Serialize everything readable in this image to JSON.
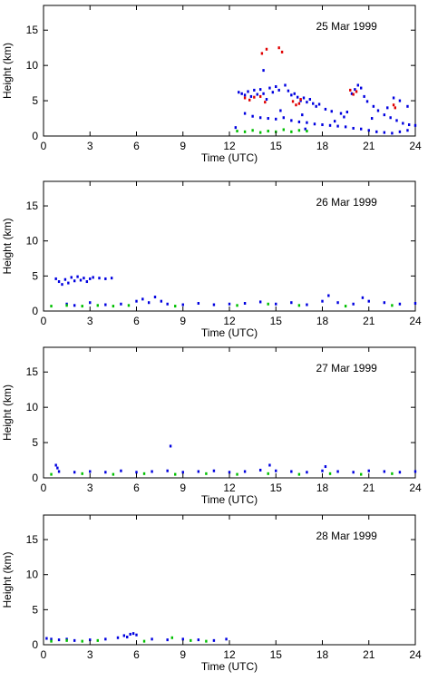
{
  "chart_data": [
    {
      "type": "scatter",
      "title": "25 Mar 1999",
      "xlabel": "Time (UTC)",
      "ylabel": "Height (km)",
      "xlim": [
        0,
        24
      ],
      "ylim": [
        0,
        18.5
      ],
      "xticks": [
        0,
        3,
        6,
        9,
        12,
        15,
        18,
        21,
        24
      ],
      "yticks": [
        0,
        5,
        10,
        15
      ],
      "grid": false,
      "colors": {
        "blue": "#0000e0",
        "red": "#e00000",
        "green": "#00c000"
      },
      "series": [
        {
          "color": "blue",
          "points": [
            [
              12.6,
              6.2
            ],
            [
              12.8,
              6.0
            ],
            [
              13.0,
              5.8
            ],
            [
              13.2,
              6.3
            ],
            [
              13.4,
              5.6
            ],
            [
              13.6,
              6.5
            ],
            [
              13.8,
              5.9
            ],
            [
              14.0,
              6.6
            ],
            [
              14.2,
              6.0
            ],
            [
              14.4,
              5.2
            ],
            [
              14.6,
              6.8
            ],
            [
              14.8,
              6.2
            ],
            [
              15.0,
              7.0
            ],
            [
              15.2,
              6.5
            ],
            [
              15.6,
              7.2
            ],
            [
              15.8,
              6.4
            ],
            [
              16.0,
              5.8
            ],
            [
              16.2,
              6.0
            ],
            [
              16.4,
              5.5
            ],
            [
              16.6,
              5.0
            ],
            [
              16.8,
              5.4
            ],
            [
              17.0,
              4.8
            ],
            [
              17.2,
              5.2
            ],
            [
              17.4,
              4.6
            ],
            [
              17.6,
              4.2
            ],
            [
              17.8,
              4.5
            ],
            [
              18.2,
              3.8
            ],
            [
              18.6,
              3.5
            ],
            [
              19.2,
              3.2
            ],
            [
              19.6,
              3.4
            ],
            [
              19.9,
              6.0
            ],
            [
              20.1,
              6.6
            ],
            [
              20.3,
              7.2
            ],
            [
              20.5,
              6.8
            ],
            [
              20.7,
              5.6
            ],
            [
              20.9,
              4.9
            ],
            [
              21.3,
              4.2
            ],
            [
              21.6,
              3.6
            ],
            [
              22.0,
              3.0
            ],
            [
              22.4,
              2.6
            ],
            [
              22.8,
              2.2
            ],
            [
              23.2,
              1.8
            ],
            [
              23.6,
              1.6
            ],
            [
              24.0,
              1.5
            ],
            [
              13.0,
              3.2
            ],
            [
              13.5,
              2.8
            ],
            [
              14.0,
              2.6
            ],
            [
              14.5,
              2.5
            ],
            [
              15.0,
              2.4
            ],
            [
              15.5,
              2.6
            ],
            [
              16.0,
              2.2
            ],
            [
              16.5,
              2.0
            ],
            [
              17.0,
              1.9
            ],
            [
              17.5,
              1.7
            ],
            [
              18.0,
              1.6
            ],
            [
              18.5,
              1.5
            ],
            [
              19.0,
              1.4
            ],
            [
              19.5,
              1.3
            ],
            [
              20.0,
              1.1
            ],
            [
              20.5,
              1.0
            ],
            [
              21.0,
              0.8
            ],
            [
              21.5,
              0.6
            ],
            [
              22.0,
              0.5
            ],
            [
              22.5,
              0.4
            ],
            [
              23.0,
              0.6
            ],
            [
              23.5,
              0.8
            ],
            [
              12.4,
              1.2
            ],
            [
              14.2,
              9.3
            ],
            [
              16.9,
              1.0
            ],
            [
              18.8,
              2.1
            ],
            [
              21.2,
              2.5
            ],
            [
              22.2,
              4.0
            ],
            [
              22.6,
              5.4
            ],
            [
              23.0,
              5.0
            ],
            [
              23.5,
              4.2
            ],
            [
              15.3,
              3.6
            ],
            [
              16.7,
              3.0
            ],
            [
              19.4,
              2.7
            ]
          ]
        },
        {
          "color": "red",
          "points": [
            [
              13.0,
              5.4
            ],
            [
              13.3,
              5.1
            ],
            [
              13.6,
              5.5
            ],
            [
              14.0,
              5.6
            ],
            [
              14.3,
              4.8
            ],
            [
              15.2,
              12.5
            ],
            [
              15.4,
              11.9
            ],
            [
              16.1,
              4.9
            ],
            [
              16.3,
              4.4
            ],
            [
              16.5,
              4.6
            ],
            [
              16.6,
              5.2
            ],
            [
              19.8,
              6.5
            ],
            [
              20.0,
              5.9
            ],
            [
              20.2,
              6.3
            ],
            [
              22.6,
              4.4
            ],
            [
              22.7,
              4.0
            ],
            [
              14.1,
              11.7
            ],
            [
              14.4,
              12.3
            ]
          ]
        },
        {
          "color": "green",
          "points": [
            [
              12.5,
              0.7
            ],
            [
              13.0,
              0.6
            ],
            [
              13.5,
              0.8
            ],
            [
              14.0,
              0.5
            ],
            [
              14.5,
              0.7
            ],
            [
              15.0,
              0.6
            ],
            [
              15.5,
              0.9
            ],
            [
              16.0,
              0.6
            ],
            [
              16.5,
              0.8
            ],
            [
              17.0,
              0.7
            ]
          ]
        }
      ]
    },
    {
      "type": "scatter",
      "title": "26 Mar 1999",
      "xlabel": "Time (UTC)",
      "ylabel": "Height (km)",
      "xlim": [
        0,
        24
      ],
      "ylim": [
        0,
        18.5
      ],
      "xticks": [
        0,
        3,
        6,
        9,
        12,
        15,
        18,
        21,
        24
      ],
      "yticks": [
        0,
        5,
        10,
        15
      ],
      "grid": false,
      "colors": {
        "blue": "#0000e0",
        "red": "#e00000",
        "green": "#00c000"
      },
      "series": [
        {
          "color": "blue",
          "points": [
            [
              0.8,
              4.6
            ],
            [
              1.0,
              4.2
            ],
            [
              1.2,
              3.8
            ],
            [
              1.4,
              4.5
            ],
            [
              1.6,
              4.0
            ],
            [
              1.8,
              4.8
            ],
            [
              2.0,
              4.3
            ],
            [
              2.2,
              4.9
            ],
            [
              2.4,
              4.4
            ],
            [
              2.6,
              4.7
            ],
            [
              2.8,
              4.2
            ],
            [
              3.0,
              4.6
            ],
            [
              3.2,
              4.8
            ],
            [
              3.6,
              4.7
            ],
            [
              4.0,
              4.6
            ],
            [
              4.4,
              4.7
            ],
            [
              1.5,
              1.0
            ],
            [
              2.0,
              0.8
            ],
            [
              3.0,
              1.2
            ],
            [
              4.0,
              0.9
            ],
            [
              5.0,
              1.0
            ],
            [
              6.0,
              1.4
            ],
            [
              6.4,
              1.7
            ],
            [
              6.8,
              1.2
            ],
            [
              7.2,
              2.0
            ],
            [
              7.6,
              1.4
            ],
            [
              8.0,
              1.0
            ],
            [
              9.0,
              0.9
            ],
            [
              10.0,
              1.1
            ],
            [
              11.0,
              0.9
            ],
            [
              12.0,
              1.0
            ],
            [
              13.0,
              1.1
            ],
            [
              14.0,
              1.3
            ],
            [
              15.0,
              1.0
            ],
            [
              16.0,
              1.2
            ],
            [
              17.0,
              0.9
            ],
            [
              18.0,
              1.4
            ],
            [
              18.4,
              2.2
            ],
            [
              19.0,
              1.2
            ],
            [
              20.0,
              1.0
            ],
            [
              20.6,
              1.9
            ],
            [
              21.0,
              1.4
            ],
            [
              22.0,
              1.2
            ],
            [
              23.0,
              1.0
            ],
            [
              24.0,
              1.1
            ]
          ]
        },
        {
          "color": "red",
          "points": []
        },
        {
          "color": "green",
          "points": [
            [
              0.5,
              0.7
            ],
            [
              1.5,
              0.8
            ],
            [
              2.5,
              0.7
            ],
            [
              3.5,
              0.8
            ],
            [
              4.5,
              0.7
            ],
            [
              5.5,
              0.8
            ],
            [
              8.5,
              0.7
            ],
            [
              12.5,
              0.8
            ],
            [
              14.5,
              1.0
            ],
            [
              16.5,
              0.8
            ],
            [
              19.5,
              0.7
            ],
            [
              22.5,
              0.8
            ]
          ]
        }
      ]
    },
    {
      "type": "scatter",
      "title": "27 Mar 1999",
      "xlabel": "Time (UTC)",
      "ylabel": "Height (km)",
      "xlim": [
        0,
        24
      ],
      "ylim": [
        0,
        18.5
      ],
      "xticks": [
        0,
        3,
        6,
        9,
        12,
        15,
        18,
        21,
        24
      ],
      "yticks": [
        0,
        5,
        10,
        15
      ],
      "grid": false,
      "colors": {
        "blue": "#0000e0",
        "red": "#e00000",
        "green": "#00c000"
      },
      "series": [
        {
          "color": "blue",
          "points": [
            [
              0.8,
              1.8
            ],
            [
              0.9,
              1.4
            ],
            [
              1.0,
              0.9
            ],
            [
              2.0,
              0.8
            ],
            [
              3.0,
              0.9
            ],
            [
              4.0,
              0.8
            ],
            [
              5.0,
              1.0
            ],
            [
              6.0,
              0.8
            ],
            [
              7.0,
              0.9
            ],
            [
              8.0,
              1.0
            ],
            [
              8.2,
              4.5
            ],
            [
              9.0,
              0.8
            ],
            [
              10.0,
              0.9
            ],
            [
              11.0,
              1.0
            ],
            [
              12.0,
              0.8
            ],
            [
              13.0,
              0.9
            ],
            [
              14.0,
              1.1
            ],
            [
              14.6,
              1.8
            ],
            [
              15.0,
              1.0
            ],
            [
              16.0,
              0.9
            ],
            [
              17.0,
              0.8
            ],
            [
              18.0,
              1.0
            ],
            [
              18.2,
              1.6
            ],
            [
              19.0,
              0.9
            ],
            [
              20.0,
              0.8
            ],
            [
              21.0,
              1.0
            ],
            [
              22.0,
              0.9
            ],
            [
              23.0,
              0.8
            ],
            [
              24.0,
              0.9
            ]
          ]
        },
        {
          "color": "red",
          "points": []
        },
        {
          "color": "green",
          "points": [
            [
              0.5,
              0.5
            ],
            [
              2.5,
              0.6
            ],
            [
              4.5,
              0.5
            ],
            [
              6.5,
              0.6
            ],
            [
              8.5,
              0.5
            ],
            [
              10.5,
              0.6
            ],
            [
              12.5,
              0.5
            ],
            [
              14.5,
              0.6
            ],
            [
              16.5,
              0.5
            ],
            [
              18.5,
              0.6
            ],
            [
              20.5,
              0.5
            ],
            [
              22.5,
              0.6
            ]
          ]
        }
      ]
    },
    {
      "type": "scatter",
      "title": "28 Mar 1999",
      "xlabel": "Time (UTC)",
      "ylabel": "Height (km)",
      "xlim": [
        0,
        24
      ],
      "ylim": [
        0,
        18.5
      ],
      "xticks": [
        0,
        3,
        6,
        9,
        12,
        15,
        18,
        21,
        24
      ],
      "yticks": [
        0,
        5,
        10,
        15
      ],
      "grid": false,
      "colors": {
        "blue": "#0000e0",
        "red": "#e00000",
        "green": "#00c000"
      },
      "series": [
        {
          "color": "blue",
          "points": [
            [
              0.2,
              0.9
            ],
            [
              0.5,
              0.8
            ],
            [
              1.0,
              0.7
            ],
            [
              1.5,
              0.8
            ],
            [
              2.0,
              0.6
            ],
            [
              3.0,
              0.7
            ],
            [
              4.0,
              0.8
            ],
            [
              4.8,
              1.0
            ],
            [
              5.2,
              1.3
            ],
            [
              5.4,
              1.1
            ],
            [
              5.6,
              1.5
            ],
            [
              5.8,
              1.6
            ],
            [
              6.0,
              1.4
            ],
            [
              7.0,
              0.8
            ],
            [
              8.0,
              0.7
            ],
            [
              9.0,
              0.8
            ],
            [
              10.0,
              0.7
            ],
            [
              11.0,
              0.6
            ],
            [
              11.8,
              0.8
            ]
          ]
        },
        {
          "color": "red",
          "points": []
        },
        {
          "color": "green",
          "points": [
            [
              0.5,
              0.5
            ],
            [
              1.5,
              0.6
            ],
            [
              2.5,
              0.5
            ],
            [
              3.5,
              0.6
            ],
            [
              6.5,
              0.5
            ],
            [
              8.3,
              1.0
            ],
            [
              9.5,
              0.6
            ],
            [
              10.5,
              0.5
            ]
          ]
        }
      ]
    }
  ]
}
